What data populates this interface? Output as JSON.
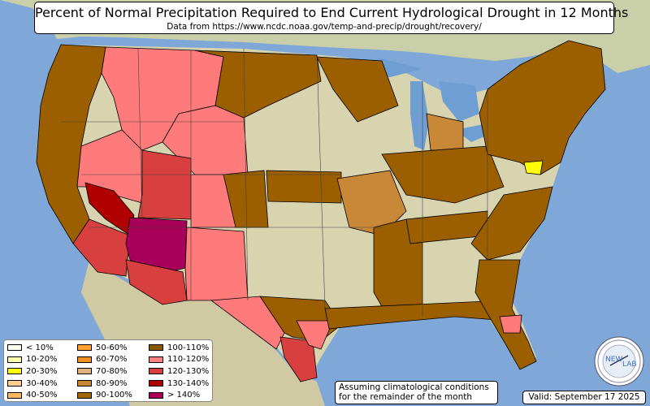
{
  "title": "Percent of Normal Precipitation Required to End Current Hydrological Drought in 12 Months",
  "subtitle": "Data from https://www.ncdc.noaa.gov/temp-and-precip/drought/recovery/",
  "assumption_line1": "Assuming climatological conditions",
  "assumption_line2": "for the remainder of the month",
  "valid": "Valid: September 17 2025",
  "logo_text_left": "NEW",
  "logo_text_right": "LAB",
  "colors": {
    "ocean": "#7fa8d8",
    "land": "#d9d4b0",
    "canada": "#c9cfa8",
    "lakes": "#6f9fd2",
    "b90_100": "#a06800",
    "b100_110": "#9b5f00",
    "b110_120": "#ff7a7a",
    "b120_130": "#d84040",
    "b130_140": "#b00000",
    "b140_plus": "#a8005a",
    "b80_90": "#c88838",
    "b20_30": "#ffff00"
  },
  "legend": [
    [
      {
        "label": "< 10%",
        "color": "#fffff0"
      },
      {
        "label": "10-20%",
        "color": "#ffffb0"
      },
      {
        "label": "20-30%",
        "color": "#ffff00"
      },
      {
        "label": "30-40%",
        "color": "#ffd090"
      },
      {
        "label": "40-50%",
        "color": "#ffb860"
      }
    ],
    [
      {
        "label": "50-60%",
        "color": "#ffa030"
      },
      {
        "label": "60-70%",
        "color": "#f09020"
      },
      {
        "label": "70-80%",
        "color": "#e0b080"
      },
      {
        "label": "80-90%",
        "color": "#c88838"
      },
      {
        "label": "90-100%",
        "color": "#a06800"
      }
    ],
    [
      {
        "label": "100-110%",
        "color": "#8a5a00"
      },
      {
        "label": "110-120%",
        "color": "#ff8080"
      },
      {
        "label": "120-130%",
        "color": "#d84040"
      },
      {
        "label": "130-140%",
        "color": "#b00000"
      },
      {
        "label": "> 140%",
        "color": "#a8005a"
      }
    ]
  ]
}
